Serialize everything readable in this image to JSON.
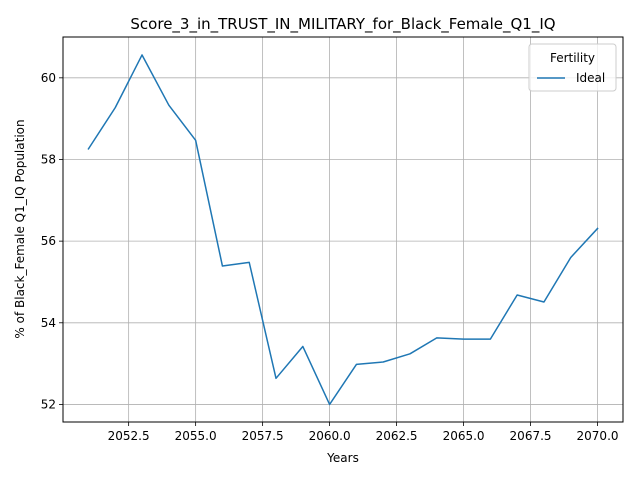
{
  "chart_data": {
    "type": "line",
    "title": "Score_3_in_TRUST_IN_MILITARY_for_Black_Female_Q1_IQ",
    "xlabel": "Years",
    "ylabel": "% of Black_Female Q1_IQ Population",
    "xlim": [
      2050.05,
      2070.95
    ],
    "ylim": [
      51.57,
      61.0
    ],
    "x_ticks": [
      2052.5,
      2055.0,
      2057.5,
      2060.0,
      2062.5,
      2065.0,
      2067.5,
      2070.0
    ],
    "x_tick_labels": [
      "2052.5",
      "2055.0",
      "2057.5",
      "2060.0",
      "2062.5",
      "2065.0",
      "2067.5",
      "2070.0"
    ],
    "y_ticks": [
      52,
      54,
      56,
      58,
      60
    ],
    "y_tick_labels": [
      "52",
      "54",
      "56",
      "58",
      "60"
    ],
    "grid": true,
    "legend": {
      "title": "Fertility",
      "placement": "top-right"
    },
    "x": [
      2051,
      2052,
      2053,
      2054,
      2055,
      2056,
      2057,
      2058,
      2059,
      2060,
      2061,
      2062,
      2063,
      2064,
      2065,
      2066,
      2067,
      2068,
      2069,
      2070
    ],
    "series": [
      {
        "name": "Ideal",
        "color": "#1f77b4",
        "values": [
          58.26,
          59.27,
          60.56,
          59.33,
          58.47,
          55.39,
          55.48,
          52.64,
          53.42,
          52.0,
          52.98,
          53.04,
          53.24,
          53.63,
          53.6,
          53.6,
          54.68,
          54.51,
          55.6,
          56.31
        ]
      }
    ]
  }
}
